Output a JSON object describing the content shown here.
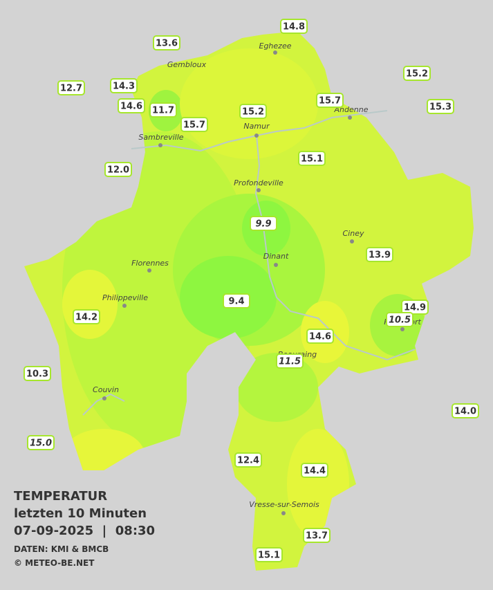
{
  "header": {
    "title": "TEMPERATUR",
    "subtitle": "letzten 10 Minuten",
    "datetime": "07-09-2025  |  08:30",
    "source": "DATEN: KMI & BMCB",
    "copyright": "© METEO-BE.NET"
  },
  "towns": [
    "Eghezee",
    "Gembloux",
    "Andenne",
    "Namur",
    "Sambreville",
    "Profondeville",
    "Ciney",
    "Dinant",
    "Florennes",
    "Philippeville",
    "Rochefort",
    "Beauraing",
    "Couvin",
    "Vresse-sur-Semois"
  ],
  "stations": [
    14.8,
    13.6,
    15.2,
    12.7,
    14.3,
    14.6,
    11.7,
    15.7,
    15.2,
    15.7,
    15.3,
    {
      "value": 12.0,
      "label": "12.0"
    },
    15.1,
    9.9,
    13.9,
    9.4,
    14.2,
    14.9,
    10.5,
    14.6,
    11.5,
    10.3,
    {
      "value": 14.0,
      "label": "14.0"
    },
    {
      "value": 15.0,
      "label": "15.0"
    },
    12.4,
    14.4,
    13.7,
    15.1
  ]
}
